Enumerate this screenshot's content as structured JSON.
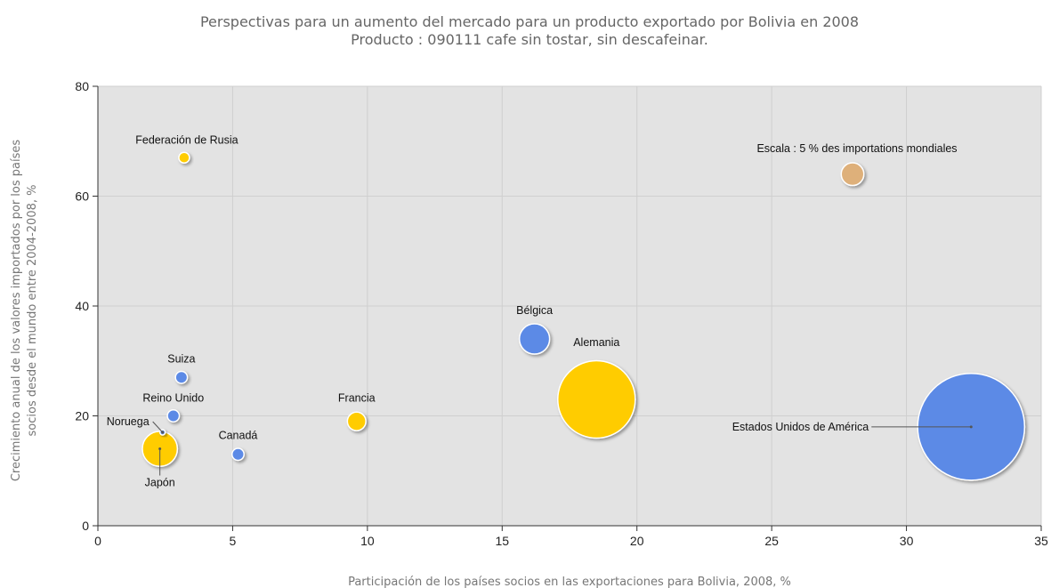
{
  "chart_data": {
    "type": "scatter",
    "title_lines": [
      "Perspectivas para un aumento del mercado para un producto exportado por Bolivia en 2008",
      "Producto : 090111 cafe sin tostar, sin descafeinar."
    ],
    "xlabel": "Participación de los países socios en las exportaciones para Bolivia, 2008, %",
    "ylabel_lines": [
      "Crecimiento anual de los valores importados por los países",
      "socios desde el mundo entre 2004-2008, %"
    ],
    "xlim": [
      0,
      35
    ],
    "ylim": [
      0,
      80
    ],
    "xticks": [
      0,
      5,
      10,
      15,
      20,
      25,
      30,
      35
    ],
    "yticks": [
      0,
      20,
      40,
      60,
      80
    ],
    "grid": true,
    "colors": {
      "plot_background": "#e3e3e3",
      "grid": "#cfcfcf",
      "blue_bubble": "#5b8ae6",
      "yellow_bubble": "#ffcc00",
      "scale_bubble": "#deb07a"
    },
    "points": [
      {
        "label": "Federación de Rusia",
        "x": 3.2,
        "y": 67,
        "size": 0.4,
        "color": "#ffcc00"
      },
      {
        "label": "Bélgica",
        "x": 16.2,
        "y": 34,
        "size": 3.2,
        "color": "#5b8ae6"
      },
      {
        "label": "Alemania",
        "x": 18.5,
        "y": 23,
        "size": 21,
        "color": "#ffcc00"
      },
      {
        "label": "Suiza",
        "x": 3.1,
        "y": 27,
        "size": 0.5,
        "color": "#5b8ae6"
      },
      {
        "label": "Reino Unido",
        "x": 2.8,
        "y": 20,
        "size": 0.5,
        "color": "#5b8ae6"
      },
      {
        "label": "Noruega",
        "x": 2.4,
        "y": 17,
        "size": 0.1,
        "color": "#5b8ae6"
      },
      {
        "label": "Japón",
        "x": 2.3,
        "y": 14,
        "size": 4.3,
        "color": "#ffcc00"
      },
      {
        "label": "Canadá",
        "x": 5.2,
        "y": 13,
        "size": 0.5,
        "color": "#5b8ae6"
      },
      {
        "label": "Francia",
        "x": 9.6,
        "y": 19,
        "size": 1.2,
        "color": "#ffcc00"
      },
      {
        "label": "Estados Unidos de América",
        "x": 32.4,
        "y": 18,
        "size": 40,
        "color": "#5b8ae6"
      }
    ],
    "scale_marker": {
      "label": "Escala : 5 % des importations mondiales",
      "x": 28,
      "y": 64,
      "size": 1.8,
      "color": "#deb07a"
    }
  }
}
